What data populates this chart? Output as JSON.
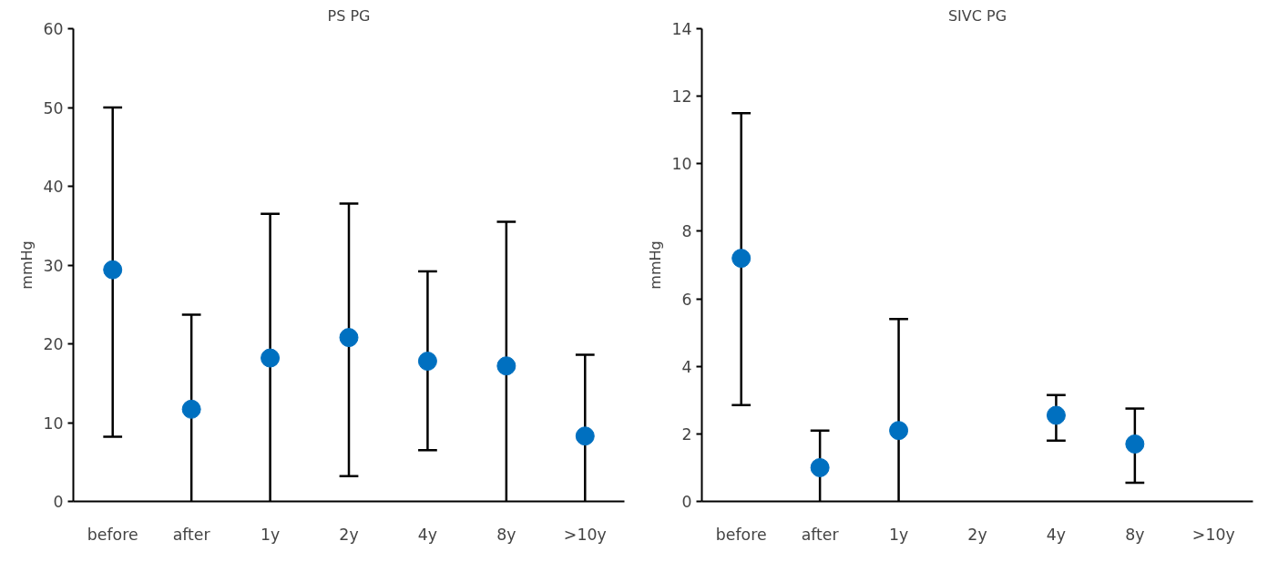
{
  "chart_data": [
    {
      "type": "scatter",
      "title": "PS PG",
      "ylabel": "mmHg",
      "categories": [
        "before",
        "after",
        "1y",
        "2y",
        "4y",
        "8y",
        ">10y"
      ],
      "marker": "circle",
      "grid": false,
      "ylim": [
        0,
        60
      ],
      "yticks": [
        0,
        10,
        20,
        30,
        40,
        50,
        60
      ],
      "series": [
        {
          "color": "#0070c0",
          "values": [
            29.4,
            11.7,
            18.2,
            20.8,
            17.8,
            17.2,
            8.3
          ],
          "errors": [
            [
              8.2,
              50
            ],
            [
              0,
              23.7
            ],
            [
              0,
              36.5
            ],
            [
              3.2,
              37.8
            ],
            [
              6.5,
              29.2
            ],
            [
              0,
              35.5
            ],
            [
              0,
              18.6
            ]
          ]
        }
      ]
    },
    {
      "type": "scatter",
      "title": "SIVC PG",
      "ylabel": "mmHg",
      "categories": [
        "before",
        "after",
        "1y",
        "2y",
        "4y",
        "8y",
        ">10y"
      ],
      "marker": "circle",
      "grid": false,
      "ylim": [
        0,
        14
      ],
      "yticks": [
        0,
        2,
        4,
        6,
        8,
        10,
        12,
        14
      ],
      "series": [
        {
          "color": "#0070c0",
          "values": [
            7.2,
            1.0,
            2.1,
            null,
            2.55,
            1.7,
            null
          ],
          "errors": [
            [
              2.85,
              11.5
            ],
            [
              0,
              2.1
            ],
            [
              0,
              5.4
            ],
            null,
            [
              1.8,
              3.15
            ],
            [
              0.55,
              2.75
            ],
            null
          ]
        }
      ]
    }
  ]
}
